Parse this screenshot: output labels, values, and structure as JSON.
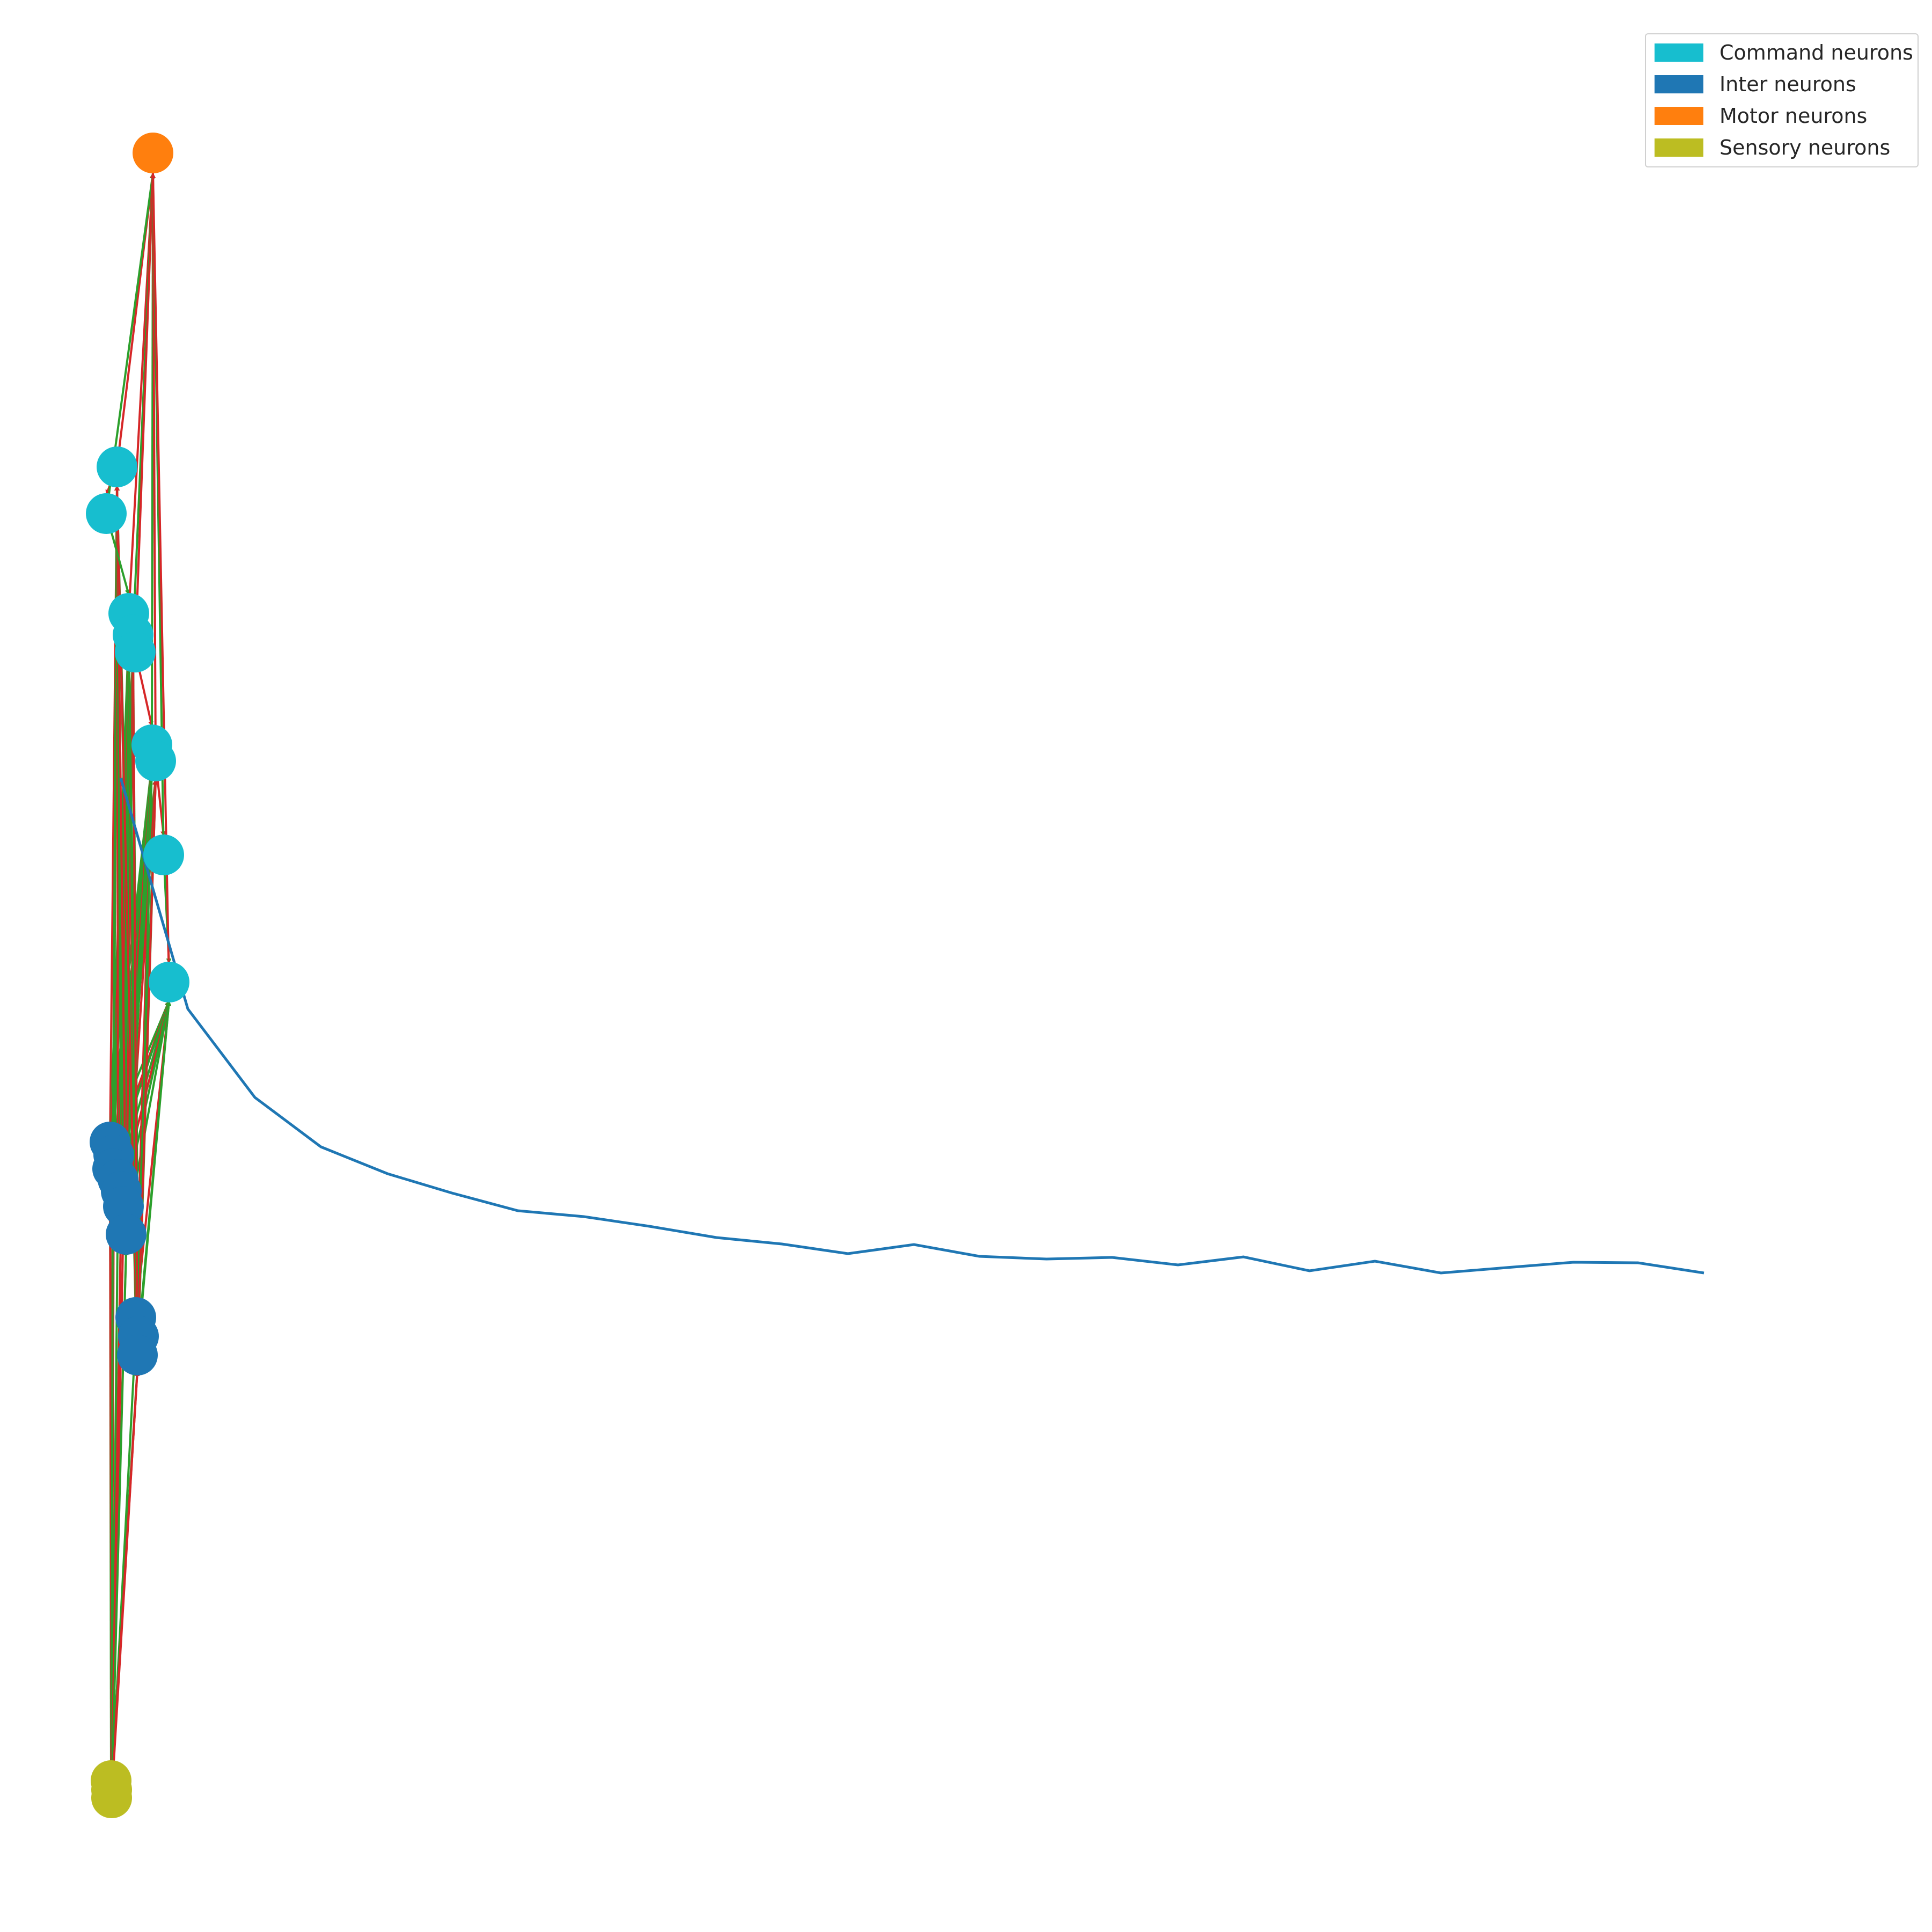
{
  "legend": {
    "items": [
      {
        "label": "Command neurons",
        "color": "#17becf"
      },
      {
        "label": "Inter neurons",
        "color": "#1f77b4"
      },
      {
        "label": "Motor neurons",
        "color": "#ff7f0e"
      },
      {
        "label": "Sensory neurons",
        "color": "#bcbd22"
      }
    ],
    "placement": "top-right"
  },
  "edge_colors": {
    "excitatory": "#2ca02c",
    "inhibitory": "#d62728"
  },
  "curve_color": "#1f77b4",
  "background": "#ffffff"
}
